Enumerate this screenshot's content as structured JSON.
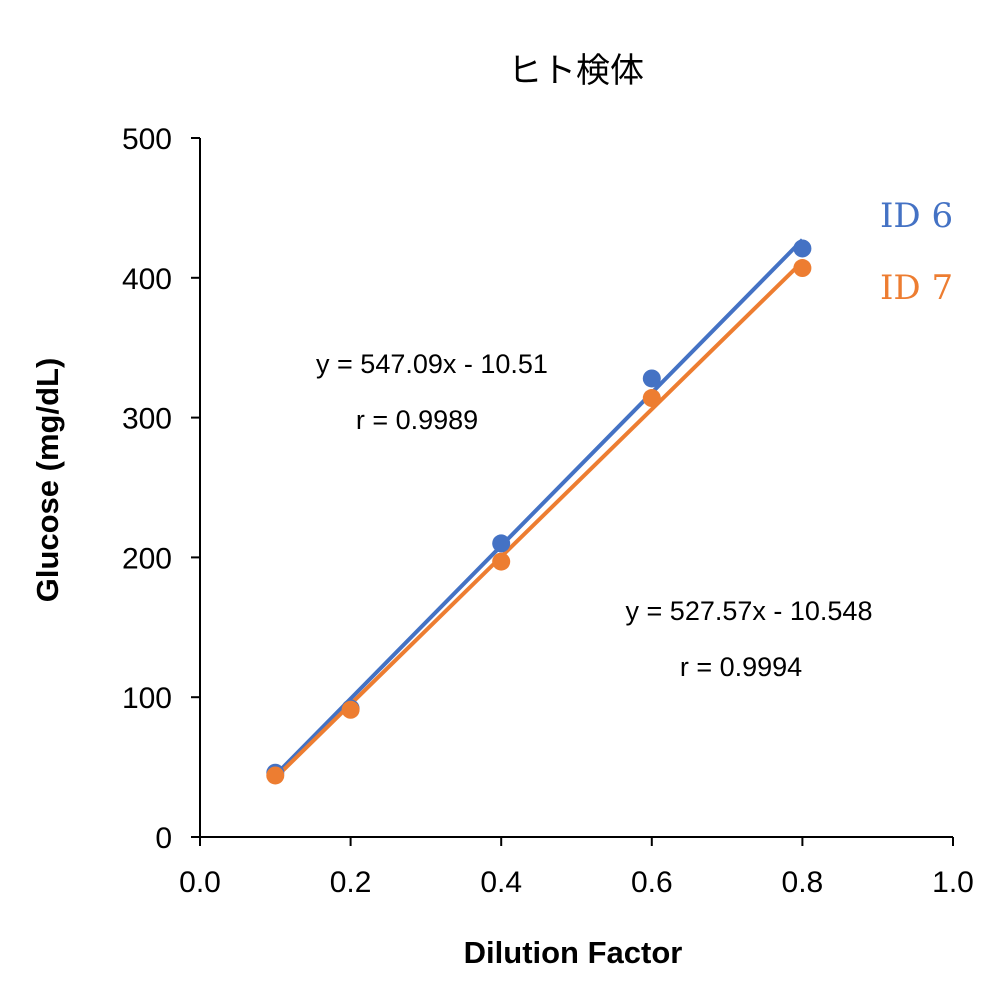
{
  "chart_data": {
    "type": "scatter",
    "title": "ヒト検体",
    "xlabel": "Dilution Factor",
    "ylabel": "Glucose (mg/dL)",
    "xlim": [
      0.0,
      1.0
    ],
    "ylim": [
      0,
      500
    ],
    "x_ticks": [
      "0.0",
      "0.2",
      "0.4",
      "0.6",
      "0.8",
      "1.0"
    ],
    "y_ticks": [
      "0",
      "100",
      "200",
      "300",
      "400",
      "500"
    ],
    "grid": false,
    "series": [
      {
        "name": "ID 6",
        "color": "#4472C4",
        "x": [
          0.1,
          0.2,
          0.4,
          0.6,
          0.8
        ],
        "y": [
          46,
          92,
          210,
          328,
          421
        ],
        "trendline": {
          "slope": 547.09,
          "intercept": -10.51
        },
        "equation": "y = 547.09x - 10.51",
        "r_label": "r = 0.9989"
      },
      {
        "name": "ID 7",
        "color": "#ED7D31",
        "x": [
          0.1,
          0.2,
          0.4,
          0.6,
          0.8
        ],
        "y": [
          44,
          91,
          197,
          314,
          407
        ],
        "trendline": {
          "slope": 527.57,
          "intercept": -10.548
        },
        "equation": "y = 527.57x - 10.548",
        "r_label": "r = 0.9994"
      }
    ]
  }
}
